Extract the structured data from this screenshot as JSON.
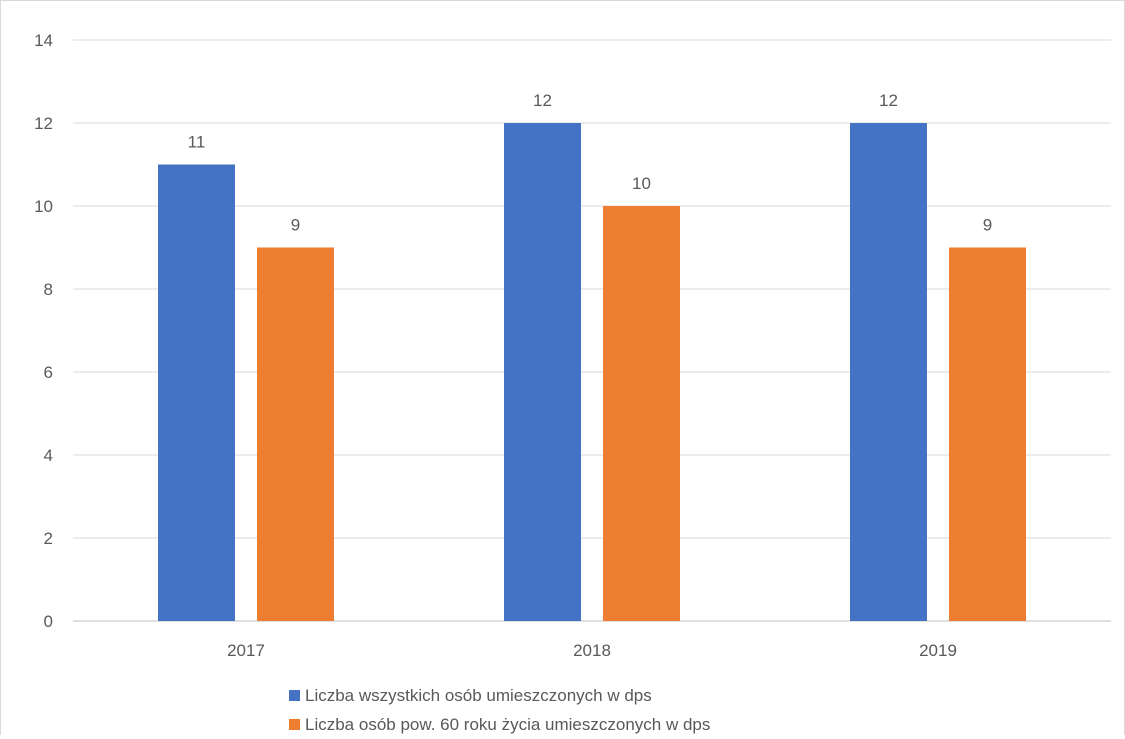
{
  "chart_data": {
    "type": "bar",
    "title": "",
    "xlabel": "",
    "ylabel": "",
    "categories": [
      "2017",
      "2018",
      "2019"
    ],
    "ylim": [
      0,
      14
    ],
    "yticks": [
      0,
      2,
      4,
      6,
      8,
      10,
      12,
      14
    ],
    "grid": true,
    "legend_position": "bottom",
    "series": [
      {
        "name": "Liczba wszystkich osób umieszczonych w dps",
        "color": "#4472c4",
        "values": [
          11,
          12,
          12
        ]
      },
      {
        "name": "Liczba osób pow. 60 roku życia umieszczonych w dps",
        "color": "#ed7d31",
        "values": [
          9,
          10,
          9
        ]
      }
    ]
  }
}
